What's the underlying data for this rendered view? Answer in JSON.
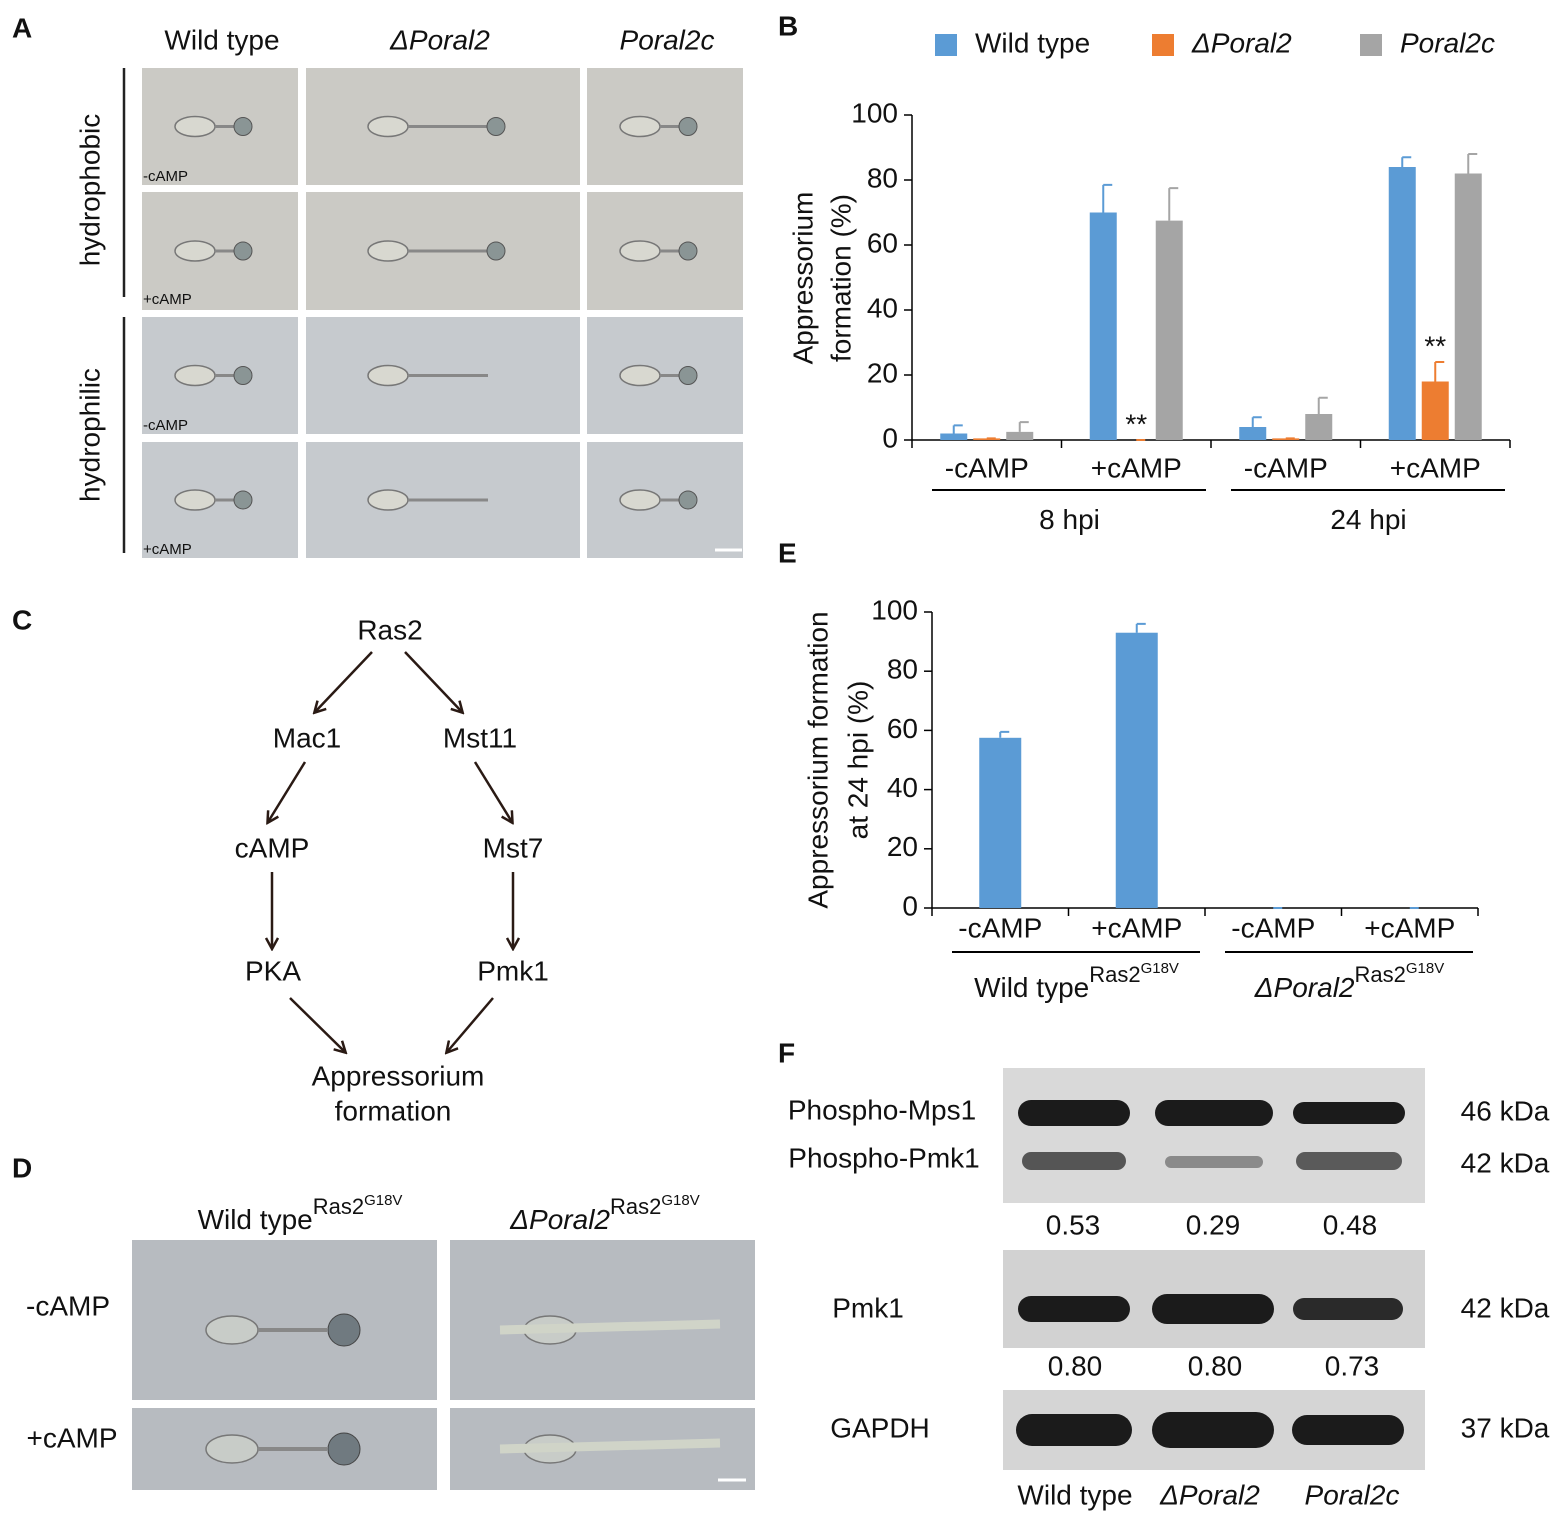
{
  "panel_a": {
    "label": "A",
    "columns": [
      {
        "text": "Wild type"
      },
      {
        "text": "ΔPoral2",
        "italic": true
      },
      {
        "text": "Poral2c",
        "italic": true
      }
    ],
    "substrates": [
      {
        "label": "hydrophobic",
        "rows": [
          "-cAMP",
          "+cAMP"
        ]
      },
      {
        "label": "hydrophilic",
        "rows": [
          "-cAMP",
          "+cAMP"
        ]
      }
    ]
  },
  "chart_data": [
    {
      "type": "bar",
      "panel_label": "B",
      "y_label": [
        "Appressorium",
        "formation (%)"
      ],
      "categories": [
        "-cAMP",
        "+cAMP",
        "-cAMP",
        "+cAMP"
      ],
      "groups": [
        {
          "label": "8 hpi"
        },
        {
          "label": "24 hpi"
        }
      ],
      "series": [
        {
          "name": "Wild type",
          "color": "#5b9bd5",
          "values": [
            2,
            70,
            4,
            84
          ],
          "errors": [
            2.5,
            8.5,
            3,
            3
          ]
        },
        {
          "name": "ΔPoral2",
          "italic": true,
          "color": "#ed7d31",
          "values": [
            0.5,
            0,
            0.5,
            18
          ],
          "errors": [
            0,
            0,
            0,
            6
          ],
          "significance": [
            null,
            "**",
            null,
            "**"
          ]
        },
        {
          "name": "Poral2c",
          "italic": true,
          "color": "#a5a5a5",
          "values": [
            2.5,
            67.5,
            8,
            82
          ],
          "errors": [
            3,
            10,
            5,
            6
          ]
        }
      ],
      "ylim": [
        0,
        100
      ],
      "yticks": [
        0,
        20,
        40,
        60,
        80,
        100
      ],
      "legend": "top"
    },
    {
      "type": "bar",
      "panel_label": "E",
      "y_label": [
        "Appressorium formation",
        "at 24 hpi (%)"
      ],
      "categories": [
        "-cAMP",
        "+cAMP",
        "-cAMP",
        "+cAMP"
      ],
      "groups": [
        {
          "label": "Wild type",
          "sup": "Ras2",
          "sup2": "G18V"
        },
        {
          "label": "ΔPoral2",
          "italic": true,
          "sup": "Ras2",
          "sup2": "G18V"
        }
      ],
      "series": [
        {
          "color": "#5b9bd5",
          "values": [
            57.5,
            93,
            0,
            0
          ],
          "errors": [
            2,
            3,
            0,
            0
          ]
        }
      ],
      "ylim": [
        0,
        100
      ],
      "yticks": [
        0,
        20,
        40,
        60,
        80,
        100
      ]
    }
  ],
  "panel_c": {
    "label": "C",
    "nodes": [
      [
        "Ras2"
      ],
      [
        "Mac1"
      ],
      [
        "Mst11"
      ],
      [
        "cAMP"
      ],
      [
        "Mst7"
      ],
      [
        "PKA"
      ],
      [
        "Pmk1"
      ],
      [
        "Appressorium",
        "formation"
      ]
    ]
  },
  "panel_d": {
    "label": "D",
    "columns": [
      {
        "text": "Wild type",
        "sup": "Ras2",
        "sup2": "G18V"
      },
      {
        "text": "ΔPoral2",
        "italic": true,
        "sup": "Ras2",
        "sup2": "G18V"
      }
    ],
    "rows": [
      "-cAMP",
      "+cAMP"
    ]
  },
  "panel_f": {
    "label": "F",
    "blots": [
      {
        "bands": [
          "Phospho-Mps1",
          "Phospho-Pmk1"
        ],
        "sizes": [
          "46 kDa",
          "42 kDa"
        ],
        "quantification": [
          "0.53",
          "0.29",
          "0.48"
        ]
      },
      {
        "bands": [
          "Pmk1"
        ],
        "sizes": [
          "42 kDa"
        ],
        "quantification": [
          "0.80",
          "0.80",
          "0.73"
        ]
      },
      {
        "bands": [
          "GAPDH"
        ],
        "sizes": [
          "37 kDa"
        ]
      }
    ],
    "lanes": [
      {
        "text": "Wild type"
      },
      {
        "text": "ΔPoral2",
        "italic": true
      },
      {
        "text": "Poral2c",
        "italic": true
      }
    ]
  }
}
